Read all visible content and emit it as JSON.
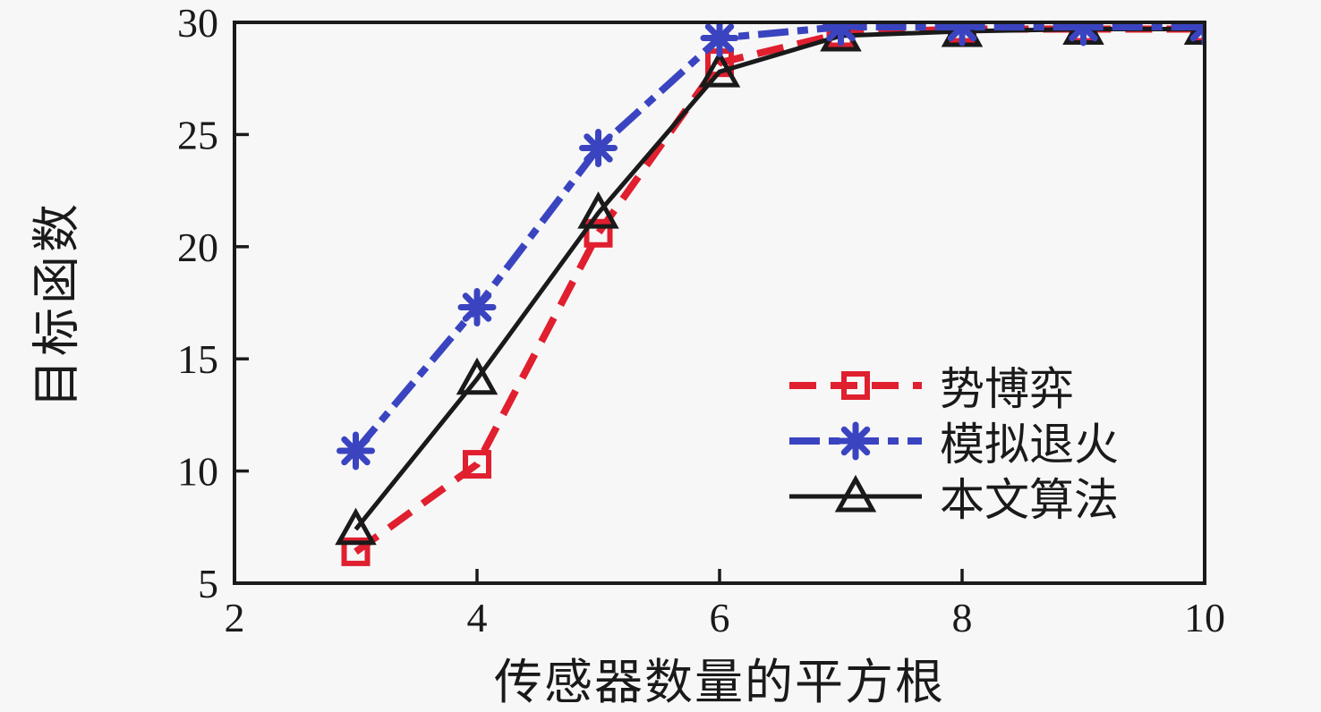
{
  "colors": {
    "background": "#f7f7f7",
    "axis_and_text": "#1a1a1a",
    "series_red": "#e01f2f",
    "series_blue": "#3b44c0",
    "series_black": "#1a1a1a"
  },
  "chart_data": {
    "type": "line",
    "title": "",
    "xlabel": "传感器数量的平方根",
    "ylabel": "目标函数",
    "xlim": [
      2,
      10
    ],
    "ylim": [
      5,
      30
    ],
    "xticks": [
      2,
      4,
      6,
      8,
      10
    ],
    "yticks": [
      5,
      10,
      15,
      20,
      25,
      30
    ],
    "grid": false,
    "legend_position": "inside lower-right",
    "x": [
      3,
      4,
      5,
      6,
      7,
      8,
      9,
      10
    ],
    "series": [
      {
        "name": "势博弈",
        "color": "#e01f2f",
        "line_style": "dashed",
        "marker": "open-square",
        "values": [
          6.4,
          10.3,
          20.6,
          28.2,
          29.5,
          29.7,
          29.7,
          29.7
        ]
      },
      {
        "name": "模拟退火",
        "color": "#3b44c0",
        "line_style": "dash-dot",
        "marker": "asterisk",
        "values": [
          10.9,
          17.3,
          24.4,
          29.3,
          29.8,
          29.8,
          29.8,
          29.8
        ]
      },
      {
        "name": "本文算法",
        "color": "#1a1a1a",
        "line_style": "solid",
        "marker": "open-triangle",
        "values": [
          7.4,
          14.1,
          21.5,
          27.8,
          29.4,
          29.6,
          29.7,
          29.7
        ]
      }
    ]
  }
}
